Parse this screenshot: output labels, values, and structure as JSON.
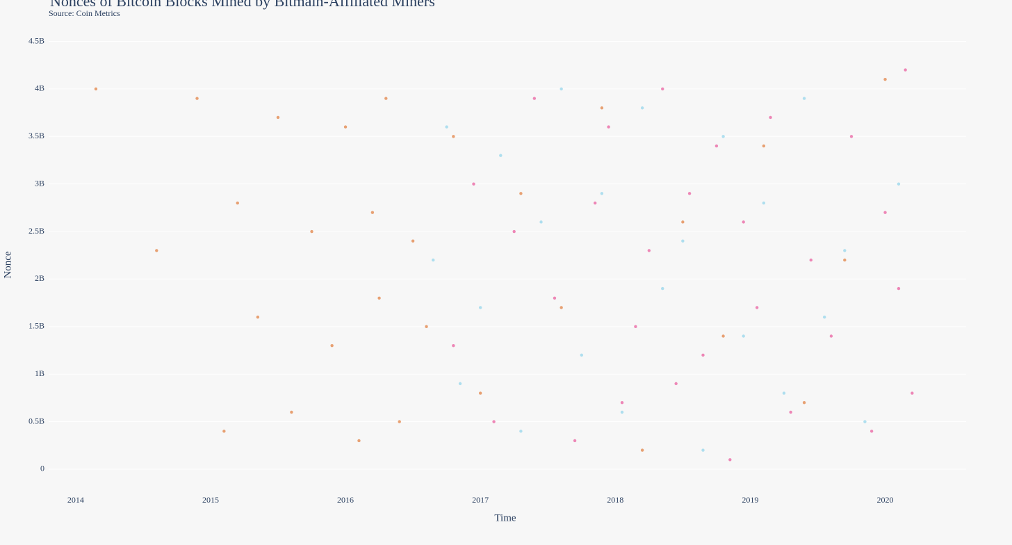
{
  "chart_data": {
    "type": "scatter",
    "title": "Nonces of Bitcoin Blocks Mined by Bitmain-Affiliated Miners",
    "subtitle": "Source: Coin Metrics",
    "x_label": "Time",
    "y_label": "Nonce",
    "xlim": [
      2013.8,
      2020.6
    ],
    "xticks": [
      2014,
      2015,
      2016,
      2017,
      2018,
      2019,
      2020
    ],
    "ylim": [
      -300000000,
      4650000000
    ],
    "yticks": [
      0,
      {
        "value": 500000000,
        "label": "0.5B"
      },
      {
        "value": 1000000000,
        "label": "1B"
      },
      {
        "value": 1500000000,
        "label": "1.5B"
      },
      {
        "value": 2000000000,
        "label": "2B"
      },
      {
        "value": 2500000000,
        "label": "2.5B"
      },
      {
        "value": 3000000000,
        "label": "3B"
      },
      {
        "value": 3500000000,
        "label": "3.5B"
      },
      {
        "value": 4000000000,
        "label": "4B"
      },
      {
        "value": 4500000000,
        "label": "4.5B"
      }
    ],
    "grid": true,
    "series": [
      {
        "color": "#e07b39",
        "x": [
          2014.15,
          2014.6,
          2014.9,
          2015.1,
          2015.2,
          2015.35,
          2015.5,
          2015.6,
          2015.75,
          2015.9,
          2016.0,
          2016.1,
          2016.2,
          2016.25,
          2016.3,
          2016.4,
          2016.5,
          2016.6,
          2016.8,
          2017.0,
          2017.3,
          2017.6,
          2017.9,
          2018.2,
          2018.5,
          2018.8,
          2019.1,
          2019.4,
          2019.7,
          2020.0
        ],
        "values": [
          4000000000.0,
          2300000000.0,
          3900000000.0,
          400000000.0,
          2800000000.0,
          1600000000.0,
          3700000000.0,
          600000000.0,
          2500000000.0,
          1300000000.0,
          3600000000.0,
          300000000.0,
          2700000000.0,
          1800000000.0,
          3900000000.0,
          500000000.0,
          2400000000.0,
          1500000000.0,
          3500000000.0,
          800000000.0,
          2900000000.0,
          1700000000.0,
          3800000000.0,
          200000000.0,
          2600000000.0,
          1400000000.0,
          3400000000.0,
          700000000.0,
          2200000000.0,
          4100000000.0
        ]
      },
      {
        "color": "#8fd3ea",
        "x": [
          2016.65,
          2016.75,
          2016.85,
          2017.0,
          2017.15,
          2017.3,
          2017.45,
          2017.6,
          2017.75,
          2017.9,
          2018.05,
          2018.2,
          2018.35,
          2018.5,
          2018.65,
          2018.8,
          2018.95,
          2019.1,
          2019.25,
          2019.4,
          2019.55,
          2019.7,
          2019.85,
          2020.1
        ],
        "values": [
          2200000000.0,
          3600000000.0,
          900000000.0,
          1700000000.0,
          3300000000.0,
          400000000.0,
          2600000000.0,
          4000000000.0,
          1200000000.0,
          2900000000.0,
          600000000.0,
          3800000000.0,
          1900000000.0,
          2400000000.0,
          200000000.0,
          3500000000.0,
          1400000000.0,
          2800000000.0,
          800000000.0,
          3900000000.0,
          1600000000.0,
          2300000000.0,
          500000000.0,
          3000000000.0
        ]
      },
      {
        "color": "#e8559a",
        "x": [
          2016.8,
          2016.95,
          2017.1,
          2017.25,
          2017.4,
          2017.55,
          2017.7,
          2017.85,
          2017.95,
          2018.05,
          2018.15,
          2018.25,
          2018.35,
          2018.45,
          2018.55,
          2018.65,
          2018.75,
          2018.85,
          2018.95,
          2019.05,
          2019.15,
          2019.3,
          2019.45,
          2019.6,
          2019.75,
          2019.9,
          2020.0,
          2020.1,
          2020.15,
          2020.2
        ],
        "values": [
          1300000000.0,
          3000000000.0,
          500000000.0,
          2500000000.0,
          3900000000.0,
          1800000000.0,
          300000000.0,
          2800000000.0,
          3600000000.0,
          700000000.0,
          1500000000.0,
          2300000000.0,
          4000000000.0,
          900000000.0,
          2900000000.0,
          1200000000.0,
          3400000000.0,
          100000000.0,
          2600000000.0,
          1700000000.0,
          3700000000.0,
          600000000.0,
          2200000000.0,
          1400000000.0,
          3500000000.0,
          400000000.0,
          2700000000.0,
          1900000000.0,
          4200000000.0,
          800000000.0
        ]
      }
    ]
  }
}
